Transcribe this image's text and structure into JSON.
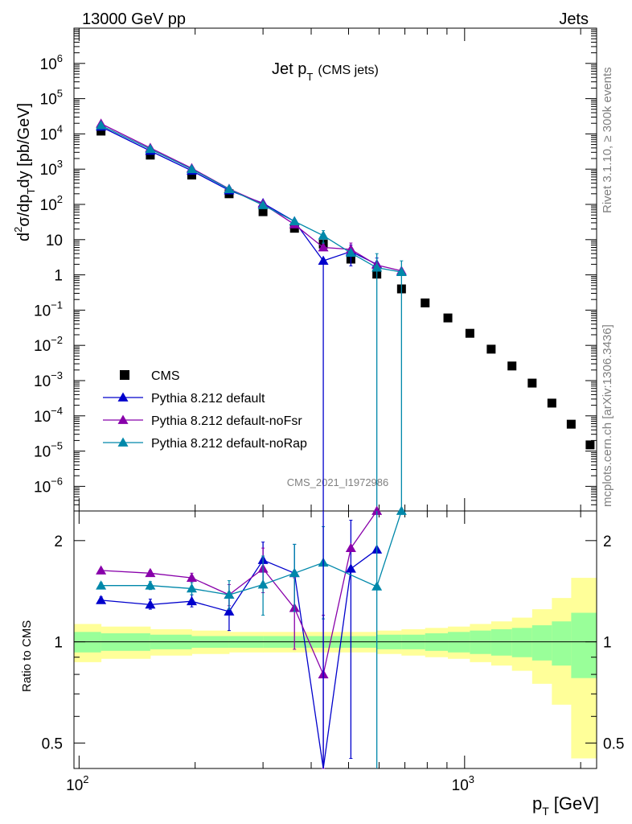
{
  "header": {
    "left": "13000 GeV pp",
    "right": "Jets"
  },
  "side_labels": {
    "rivet": "Rivet 3.1.10, ≥ 300k events",
    "mcplots": "mcplots.cern.ch [arXiv:1306.3436]"
  },
  "watermark": "CMS_2021_I1972986",
  "chart_data": [
    {
      "type": "scatter",
      "title_main": "Jet p",
      "title_sub": "T",
      "title_extra": "(CMS jets)",
      "ylabel": "d²σ/dp_T dy [pb/GeV]",
      "ylabel_parts": {
        "a": "d",
        "b": "2",
        "c": "σ/dp",
        "d": "T",
        "e": "dy [pb/GeV]"
      },
      "xscale": "log",
      "yscale": "log",
      "xlim": [
        97,
        2200
      ],
      "ylim": [
        2e-07,
        10000000.0
      ],
      "y_ticks": [
        {
          "v": 1000000.0,
          "base": "10",
          "exp": "6"
        },
        {
          "v": 100000.0,
          "base": "10",
          "exp": "5"
        },
        {
          "v": 10000.0,
          "base": "10",
          "exp": "4"
        },
        {
          "v": 1000.0,
          "base": "10",
          "exp": "3"
        },
        {
          "v": 100.0,
          "base": "10",
          "exp": "2"
        },
        {
          "v": 10,
          "base": "10",
          "exp": ""
        },
        {
          "v": 1,
          "base": "1",
          "exp": ""
        },
        {
          "v": 0.1,
          "base": "10",
          "exp": "−1"
        },
        {
          "v": 0.01,
          "base": "10",
          "exp": "−2"
        },
        {
          "v": 0.001,
          "base": "10",
          "exp": "−3"
        },
        {
          "v": 0.0001,
          "base": "10",
          "exp": "−4"
        },
        {
          "v": 1e-05,
          "base": "10",
          "exp": "−5"
        },
        {
          "v": 1e-06,
          "base": "10",
          "exp": "−6"
        }
      ],
      "legend_position": "lower-left",
      "series": [
        {
          "name": "CMS",
          "marker": "square",
          "color": "#000000",
          "points": [
            {
              "x": 114,
              "y": 12000
            },
            {
              "x": 153,
              "y": 2500
            },
            {
              "x": 196,
              "y": 680
            },
            {
              "x": 245,
              "y": 200
            },
            {
              "x": 300,
              "y": 62
            },
            {
              "x": 362,
              "y": 21
            },
            {
              "x": 430,
              "y": 7.5
            },
            {
              "x": 507,
              "y": 2.8
            },
            {
              "x": 592,
              "y": 1.05
            },
            {
              "x": 686,
              "y": 0.4
            },
            {
              "x": 790,
              "y": 0.16
            },
            {
              "x": 905,
              "y": 0.06
            },
            {
              "x": 1032,
              "y": 0.022
            },
            {
              "x": 1172,
              "y": 0.0078
            },
            {
              "x": 1327,
              "y": 0.0026
            },
            {
              "x": 1497,
              "y": 0.00085
            },
            {
              "x": 1684,
              "y": 0.00023
            },
            {
              "x": 1890,
              "y": 5.8e-05
            },
            {
              "x": 2116,
              "y": 1.5e-05
            }
          ]
        },
        {
          "name": "Pythia 8.212 default",
          "marker": "triangle",
          "color": "#0000cc",
          "points": [
            {
              "x": 114,
              "y": 16000
            },
            {
              "x": 153,
              "y": 3300
            },
            {
              "x": 196,
              "y": 900
            },
            {
              "x": 245,
              "y": 250
            },
            {
              "x": 300,
              "y": 108
            },
            {
              "x": 362,
              "y": 33
            },
            {
              "x": 430,
              "y": 2.5,
              "lo": 1e-07
            },
            {
              "x": 507,
              "y": 4.6,
              "lo": 1.8,
              "hi": 7
            },
            {
              "x": 592,
              "y": 2.0,
              "lo": 1.3,
              "hi": 3.0
            }
          ]
        },
        {
          "name": "Pythia 8.212 default-noFsr",
          "marker": "triangle",
          "color": "#8800aa",
          "points": [
            {
              "x": 114,
              "y": 19500
            },
            {
              "x": 153,
              "y": 4000
            },
            {
              "x": 196,
              "y": 1060
            },
            {
              "x": 245,
              "y": 275
            },
            {
              "x": 300,
              "y": 103
            },
            {
              "x": 362,
              "y": 27
            },
            {
              "x": 430,
              "y": 6.0
            },
            {
              "x": 507,
              "y": 5.3,
              "lo": 3.5,
              "hi": 8
            },
            {
              "x": 592,
              "y": 1.9
            },
            {
              "x": 686,
              "y": 1.3
            }
          ]
        },
        {
          "name": "Pythia 8.212 default-noRap",
          "marker": "triangle",
          "color": "#0088aa",
          "points": [
            {
              "x": 114,
              "y": 17500
            },
            {
              "x": 153,
              "y": 3700
            },
            {
              "x": 196,
              "y": 1000
            },
            {
              "x": 245,
              "y": 270
            },
            {
              "x": 300,
              "y": 95
            },
            {
              "x": 362,
              "y": 33
            },
            {
              "x": 430,
              "y": 13,
              "lo": 8,
              "hi": 18
            },
            {
              "x": 507,
              "y": 4.2
            },
            {
              "x": 592,
              "y": 1.6,
              "lo": 1e-07,
              "hi": 4
            },
            {
              "x": 686,
              "y": 1.2,
              "lo": 1e-07,
              "hi": 2.5
            }
          ]
        }
      ]
    },
    {
      "type": "line",
      "ylabel": "Ratio to CMS",
      "xlabel_main": "p",
      "xlabel_sub": "T",
      "xlabel_unit": "[GeV]",
      "xscale": "log",
      "yscale": "log",
      "xlim": [
        97,
        2200
      ],
      "ylim": [
        0.42,
        2.45
      ],
      "y_ticks": [
        {
          "v": 0.5,
          "label": "0.5"
        },
        {
          "v": 1,
          "label": "1"
        },
        {
          "v": 2,
          "label": "2"
        }
      ],
      "x_ticks": [
        {
          "v": 100,
          "base": "10",
          "exp": "2"
        },
        {
          "v": 1000,
          "base": "10",
          "exp": "3"
        }
      ],
      "band_edges": [
        97,
        114,
        153,
        196,
        245,
        300,
        362,
        430,
        507,
        592,
        686,
        790,
        905,
        1032,
        1172,
        1327,
        1497,
        1684,
        1890,
        2200
      ],
      "band_inner": [
        0.07,
        0.06,
        0.05,
        0.04,
        0.04,
        0.04,
        0.04,
        0.04,
        0.04,
        0.05,
        0.05,
        0.06,
        0.07,
        0.08,
        0.09,
        0.1,
        0.12,
        0.15,
        0.22
      ],
      "band_outer": [
        0.13,
        0.11,
        0.09,
        0.08,
        0.07,
        0.07,
        0.07,
        0.07,
        0.07,
        0.08,
        0.09,
        0.1,
        0.11,
        0.13,
        0.15,
        0.18,
        0.25,
        0.35,
        0.55
      ],
      "band_inner_color": "#99ff99",
      "band_outer_color": "#ffff99",
      "series": [
        {
          "name": "Pythia 8.212 default",
          "color": "#0000cc",
          "points": [
            {
              "x": 114,
              "y": 1.33,
              "lo": 1.3,
              "hi": 1.36
            },
            {
              "x": 153,
              "y": 1.29,
              "lo": 1.25,
              "hi": 1.34
            },
            {
              "x": 196,
              "y": 1.32,
              "lo": 1.27,
              "hi": 1.38
            },
            {
              "x": 245,
              "y": 1.23,
              "lo": 1.08,
              "hi": 1.38
            },
            {
              "x": 300,
              "y": 1.75,
              "lo": 1.5,
              "hi": 1.98
            },
            {
              "x": 362,
              "y": 1.6,
              "lo": 1.25,
              "hi": 1.95
            },
            {
              "x": 430,
              "y": 0.33
            },
            {
              "x": 507,
              "y": 1.65,
              "lo": 0.45,
              "hi": 2.3
            },
            {
              "x": 592,
              "y": 1.88
            }
          ]
        },
        {
          "name": "Pythia 8.212 default-noFsr",
          "color": "#8800aa",
          "points": [
            {
              "x": 114,
              "y": 1.63,
              "lo": 1.61,
              "hi": 1.65
            },
            {
              "x": 153,
              "y": 1.6,
              "lo": 1.57,
              "hi": 1.63
            },
            {
              "x": 196,
              "y": 1.55,
              "lo": 1.5,
              "hi": 1.6
            },
            {
              "x": 245,
              "y": 1.38,
              "lo": 1.28,
              "hi": 1.48
            },
            {
              "x": 300,
              "y": 1.65,
              "lo": 1.4,
              "hi": 1.9
            },
            {
              "x": 362,
              "y": 1.26,
              "lo": 0.95,
              "hi": 1.55
            },
            {
              "x": 430,
              "y": 0.8,
              "lo": 0.4,
              "hi": 1.2
            },
            {
              "x": 507,
              "y": 1.9
            },
            {
              "x": 592,
              "y": 2.45
            }
          ]
        },
        {
          "name": "Pythia 8.212 default-noRap",
          "color": "#0088aa",
          "points": [
            {
              "x": 114,
              "y": 1.47,
              "lo": 1.44,
              "hi": 1.5
            },
            {
              "x": 153,
              "y": 1.47,
              "lo": 1.43,
              "hi": 1.51
            },
            {
              "x": 196,
              "y": 1.44,
              "lo": 1.38,
              "hi": 1.5
            },
            {
              "x": 245,
              "y": 1.38,
              "lo": 1.25,
              "hi": 1.52
            },
            {
              "x": 300,
              "y": 1.48,
              "lo": 1.2,
              "hi": 1.8
            },
            {
              "x": 362,
              "y": 1.6,
              "lo": 1.23,
              "hi": 1.95
            },
            {
              "x": 430,
              "y": 1.72,
              "lo": 1.17,
              "hi": 2.2
            },
            {
              "x": 592,
              "y": 1.46
            },
            {
              "x": 686,
              "y": 2.45
            }
          ]
        }
      ]
    }
  ]
}
